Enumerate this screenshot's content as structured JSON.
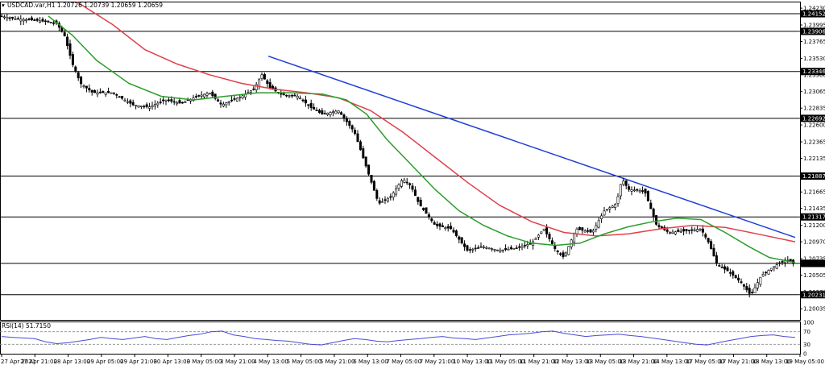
{
  "header": {
    "symbol_line": "USDCAD.var,H1  1.20726 1.20739 1.20659 1.20659"
  },
  "rsi_header": "RSI(14) 51.7150",
  "colors": {
    "candles": "#000000",
    "ma_fast": "#2a9d2a",
    "ma_slow": "#e0404a",
    "trendline": "#1f3fd8",
    "hline": "#000000",
    "current_price_bg": "#000000",
    "rsi_line": "#4a4ad8"
  },
  "chart_data": {
    "type": "candlestick",
    "symbol": "USDCAD.var",
    "timeframe": "H1",
    "ohlc_header": {
      "open": 1.20726,
      "high": 1.20739,
      "low": 1.20659,
      "close": 1.20659
    },
    "ylim": [
      1.1988,
      1.2431
    ],
    "y_ticks": [
      "1.24230",
      "1.23995",
      "1.23765",
      "1.23530",
      "1.23300",
      "1.23065",
      "1.22835",
      "1.22600",
      "1.22365",
      "1.22135",
      "1.21900",
      "1.21665",
      "1.21435",
      "1.21200",
      "1.20970",
      "1.20735",
      "1.20505",
      "1.20270",
      "1.20035"
    ],
    "x_ticks": [
      "27 Apr 2021",
      "27 Apr 21:00",
      "28 Apr 13:00",
      "29 Apr 05:00",
      "29 Apr 21:00",
      "30 Apr 13:00",
      "3 May 05:00",
      "3 May 21:00",
      "4 May 13:00",
      "5 May 05:00",
      "5 May 21:00",
      "6 May 13:00",
      "7 May 05:00",
      "7 May 21:00",
      "10 May 13:00",
      "11 May 05:00",
      "11 May 21:00",
      "12 May 13:00",
      "13 May 05:00",
      "13 May 21:00",
      "14 May 13:00",
      "17 May 05:00",
      "17 May 21:00",
      "18 May 13:00",
      "19 May 05:00"
    ],
    "horizontal_levels": [
      "1.24152",
      "1.23906",
      "1.23346",
      "1.22692",
      "1.21887",
      "1.21317",
      "1.20669",
      "1.20231"
    ],
    "current_price": "1.20669",
    "price_path": [
      [
        0,
        1.2412
      ],
      [
        20,
        1.2408
      ],
      [
        45,
        1.2406
      ],
      [
        70,
        1.2402
      ],
      [
        80,
        1.2385
      ],
      [
        90,
        1.2345
      ],
      [
        100,
        1.2318
      ],
      [
        115,
        1.2305
      ],
      [
        140,
        1.2305
      ],
      [
        165,
        1.2288
      ],
      [
        185,
        1.2285
      ],
      [
        205,
        1.2295
      ],
      [
        225,
        1.229
      ],
      [
        245,
        1.23
      ],
      [
        260,
        1.2305
      ],
      [
        275,
        1.2288
      ],
      [
        300,
        1.23
      ],
      [
        315,
        1.231
      ],
      [
        325,
        1.233
      ],
      [
        335,
        1.2312
      ],
      [
        350,
        1.2302
      ],
      [
        370,
        1.23
      ],
      [
        385,
        1.2285
      ],
      [
        400,
        1.2275
      ],
      [
        420,
        1.228
      ],
      [
        440,
        1.225
      ],
      [
        455,
        1.22
      ],
      [
        470,
        1.215
      ],
      [
        485,
        1.216
      ],
      [
        500,
        1.2185
      ],
      [
        510,
        1.2175
      ],
      [
        520,
        1.215
      ],
      [
        540,
        1.212
      ],
      [
        560,
        1.2115
      ],
      [
        580,
        1.2085
      ],
      [
        600,
        1.209
      ],
      [
        620,
        1.2085
      ],
      [
        640,
        1.2088
      ],
      [
        660,
        1.2095
      ],
      [
        675,
        1.2115
      ],
      [
        690,
        1.2085
      ],
      [
        700,
        1.2075
      ],
      [
        715,
        1.2115
      ],
      [
        735,
        1.211
      ],
      [
        750,
        1.214
      ],
      [
        765,
        1.215
      ],
      [
        772,
        1.2185
      ],
      [
        780,
        1.217
      ],
      [
        800,
        1.2168
      ],
      [
        815,
        1.212
      ],
      [
        830,
        1.211
      ],
      [
        850,
        1.2112
      ],
      [
        870,
        1.2115
      ],
      [
        880,
        1.2095
      ],
      [
        890,
        1.2065
      ],
      [
        905,
        1.2055
      ],
      [
        920,
        1.204
      ],
      [
        932,
        1.2022
      ],
      [
        945,
        1.205
      ],
      [
        960,
        1.2062
      ],
      [
        975,
        1.2072
      ],
      [
        987,
        1.2066
      ]
    ],
    "ma_fast_path": [
      [
        60,
        1.2412
      ],
      [
        90,
        1.2385
      ],
      [
        120,
        1.235
      ],
      [
        160,
        1.2318
      ],
      [
        200,
        1.23
      ],
      [
        240,
        1.2295
      ],
      [
        280,
        1.23
      ],
      [
        320,
        1.2305
      ],
      [
        360,
        1.2305
      ],
      [
        400,
        1.2303
      ],
      [
        430,
        1.2295
      ],
      [
        455,
        1.2275
      ],
      [
        480,
        1.224
      ],
      [
        510,
        1.2205
      ],
      [
        540,
        1.217
      ],
      [
        570,
        1.214
      ],
      [
        600,
        1.212
      ],
      [
        630,
        1.2105
      ],
      [
        660,
        1.2095
      ],
      [
        690,
        1.2092
      ],
      [
        720,
        1.2095
      ],
      [
        750,
        1.2108
      ],
      [
        780,
        1.2118
      ],
      [
        810,
        1.2125
      ],
      [
        840,
        1.213
      ],
      [
        870,
        1.2128
      ],
      [
        900,
        1.211
      ],
      [
        930,
        1.209
      ],
      [
        955,
        1.2075
      ],
      [
        987,
        1.2068
      ]
    ],
    "ma_slow_path": [
      [
        95,
        1.2432
      ],
      [
        140,
        1.24
      ],
      [
        180,
        1.2365
      ],
      [
        220,
        1.2345
      ],
      [
        260,
        1.233
      ],
      [
        300,
        1.2318
      ],
      [
        340,
        1.231
      ],
      [
        380,
        1.2305
      ],
      [
        420,
        1.2298
      ],
      [
        460,
        1.228
      ],
      [
        500,
        1.225
      ],
      [
        540,
        1.2215
      ],
      [
        580,
        1.218
      ],
      [
        620,
        1.2148
      ],
      [
        660,
        1.2125
      ],
      [
        700,
        1.211
      ],
      [
        740,
        1.2105
      ],
      [
        780,
        1.2108
      ],
      [
        820,
        1.2115
      ],
      [
        860,
        1.212
      ],
      [
        900,
        1.2117
      ],
      [
        940,
        1.2108
      ],
      [
        987,
        1.2097
      ]
    ],
    "trendline": [
      [
        333,
        1.2356
      ],
      [
        987,
        1.2103
      ]
    ],
    "rsi": {
      "period": 14,
      "value": "51.7150",
      "ylim": [
        0,
        100
      ],
      "levels": [
        "100",
        "70",
        "30",
        "0"
      ],
      "values": [
        55,
        52,
        50,
        48,
        38,
        32,
        35,
        40,
        45,
        52,
        48,
        45,
        50,
        55,
        48,
        45,
        52,
        58,
        62,
        70,
        72,
        60,
        55,
        48,
        45,
        42,
        40,
        35,
        30,
        28,
        35,
        42,
        48,
        45,
        40,
        38,
        42,
        45,
        48,
        52,
        55,
        50,
        48,
        45,
        50,
        55,
        60,
        62,
        65,
        70,
        72,
        65,
        60,
        55,
        58,
        60,
        62,
        58,
        55,
        50,
        45,
        40,
        35,
        30,
        28,
        35,
        42,
        48,
        55,
        58,
        60,
        55,
        52
      ]
    }
  }
}
